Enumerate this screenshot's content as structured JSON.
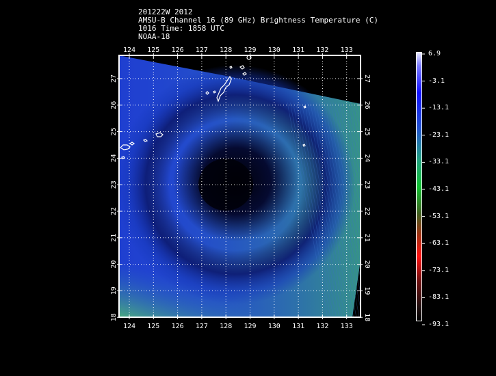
{
  "header": {
    "line1": "201222W 2012",
    "line2": "AMSU-B Channel 16 (89 GHz) Brightness Temperature (C)",
    "line3": "1016 Time: 1858 UTC",
    "line4": "NOAA-18"
  },
  "map": {
    "lon_labels": [
      "124",
      "125",
      "126",
      "127",
      "128",
      "129",
      "130",
      "131",
      "132",
      "133"
    ],
    "lat_labels": [
      "27",
      "26",
      "25",
      "24",
      "23",
      "22",
      "21",
      "20",
      "19",
      "18"
    ]
  },
  "colorbar": {
    "labels": [
      "6.9",
      "-3.1",
      "-13.1",
      "-23.1",
      "-33.1",
      "-43.1",
      "-53.1",
      "-63.1",
      "-73.1",
      "-83.1",
      "-93.1"
    ]
  },
  "colors": {
    "background": "#000000",
    "swath_blue": "#1f3fd0",
    "eye_dark": "#020418",
    "edge_green": "#3aa27a",
    "gridline": "#ffffff"
  }
}
